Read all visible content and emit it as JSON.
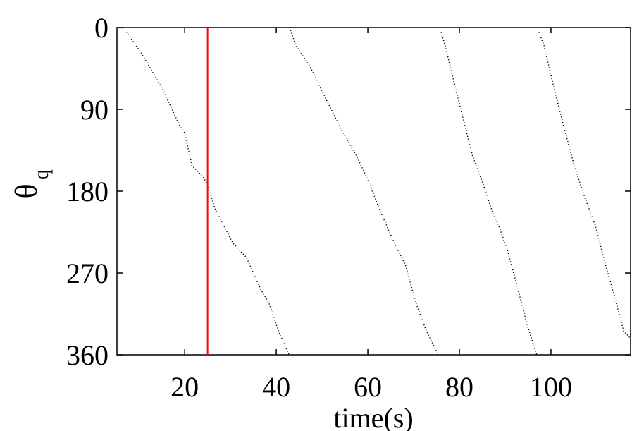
{
  "chart_data": {
    "type": "line",
    "xlabel": "time(s)",
    "ylabel": {
      "text": "θ",
      "subscript": "q"
    },
    "xlim": [
      5.2,
      117.4
    ],
    "xticks": [
      20,
      40,
      60,
      80,
      100
    ],
    "ylim": [
      0,
      360
    ],
    "yticks": [
      0,
      90,
      180,
      270,
      360
    ],
    "y_inverted": true,
    "grid": false,
    "vline": {
      "value": 25,
      "color": "#ff0000"
    },
    "series": [
      {
        "color": "#000000",
        "x": [
          5.2,
          6.8,
          10.5,
          15.1,
          19,
          20,
          21.6,
          24,
          25,
          26.6,
          30.5,
          33.5,
          36.6,
          38.4,
          40.5,
          42.8
        ],
        "values": [
          0,
          1.5,
          28,
          67,
          109,
          116,
          152,
          164,
          173,
          199,
          237,
          253,
          288,
          303,
          334,
          360
        ]
      },
      {
        "color": "#000000",
        "x": [
          42.9,
          44.3,
          47.4,
          51.2,
          54.3,
          57.4,
          59.7,
          62.8,
          65.8,
          68.2,
          70.5,
          72.8,
          75.4
        ],
        "values": [
          0,
          20,
          43,
          82,
          113,
          140,
          164,
          203,
          237,
          261,
          303,
          334,
          360
        ]
      },
      {
        "color": "#000000",
        "x": [
          76,
          76.9,
          78.2,
          80.5,
          82.8,
          85.1,
          87.1,
          88.6,
          90.5,
          92.8,
          94.8,
          96.9
        ],
        "values": [
          5,
          20,
          47,
          94,
          140,
          171,
          201,
          218,
          245,
          288,
          327,
          360
        ]
      },
      {
        "color": "#000000",
        "x": [
          97.4,
          98.5,
          100.5,
          102.8,
          105.1,
          107.4,
          109.7,
          111.7,
          113.9,
          115.9,
          117.4
        ],
        "values": [
          5,
          20,
          63,
          109,
          152,
          187,
          218,
          257,
          296,
          334,
          342
        ]
      }
    ]
  }
}
